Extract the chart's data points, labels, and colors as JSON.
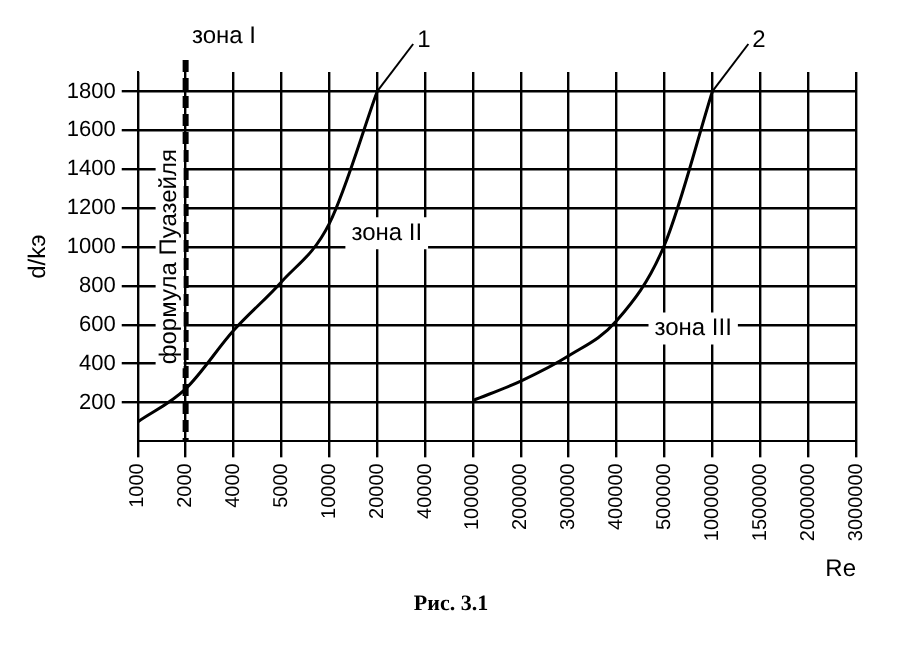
{
  "chart_data": {
    "type": "line",
    "xlabel": "Re",
    "ylabel": "d/kэ",
    "categories": [
      "1000",
      "2000",
      "4000",
      "5000",
      "10000",
      "20000",
      "40000",
      "100000",
      "200000",
      "300000",
      "400000",
      "500000",
      "1000000",
      "1500000",
      "2000000",
      "3000000"
    ],
    "series": [
      {
        "name": "1",
        "color": "#000000",
        "values": [
          100,
          270,
          570,
          820,
          1120,
          1800,
          null,
          null,
          null,
          null,
          null,
          null,
          null,
          null,
          null,
          null
        ]
      },
      {
        "name": "2",
        "color": "#000000",
        "values": [
          null,
          null,
          null,
          null,
          null,
          null,
          null,
          210,
          310,
          440,
          620,
          1010,
          1800,
          null,
          null,
          null
        ]
      }
    ],
    "ylim": [
      0,
      1900
    ],
    "yticks": [
      200,
      400,
      600,
      800,
      1000,
      1200,
      1400,
      1600,
      1800
    ],
    "grid": true,
    "legend": false,
    "marker": "none",
    "line_style": "solid",
    "ref_lines": [
      {
        "axis": "x",
        "value": "2000",
        "label": "формула Пуазейля",
        "line_style": "dashed",
        "color": "#000000"
      }
    ],
    "annotations": [
      "зона I",
      "зона II",
      "зона III",
      "Рис. 3.1"
    ]
  }
}
